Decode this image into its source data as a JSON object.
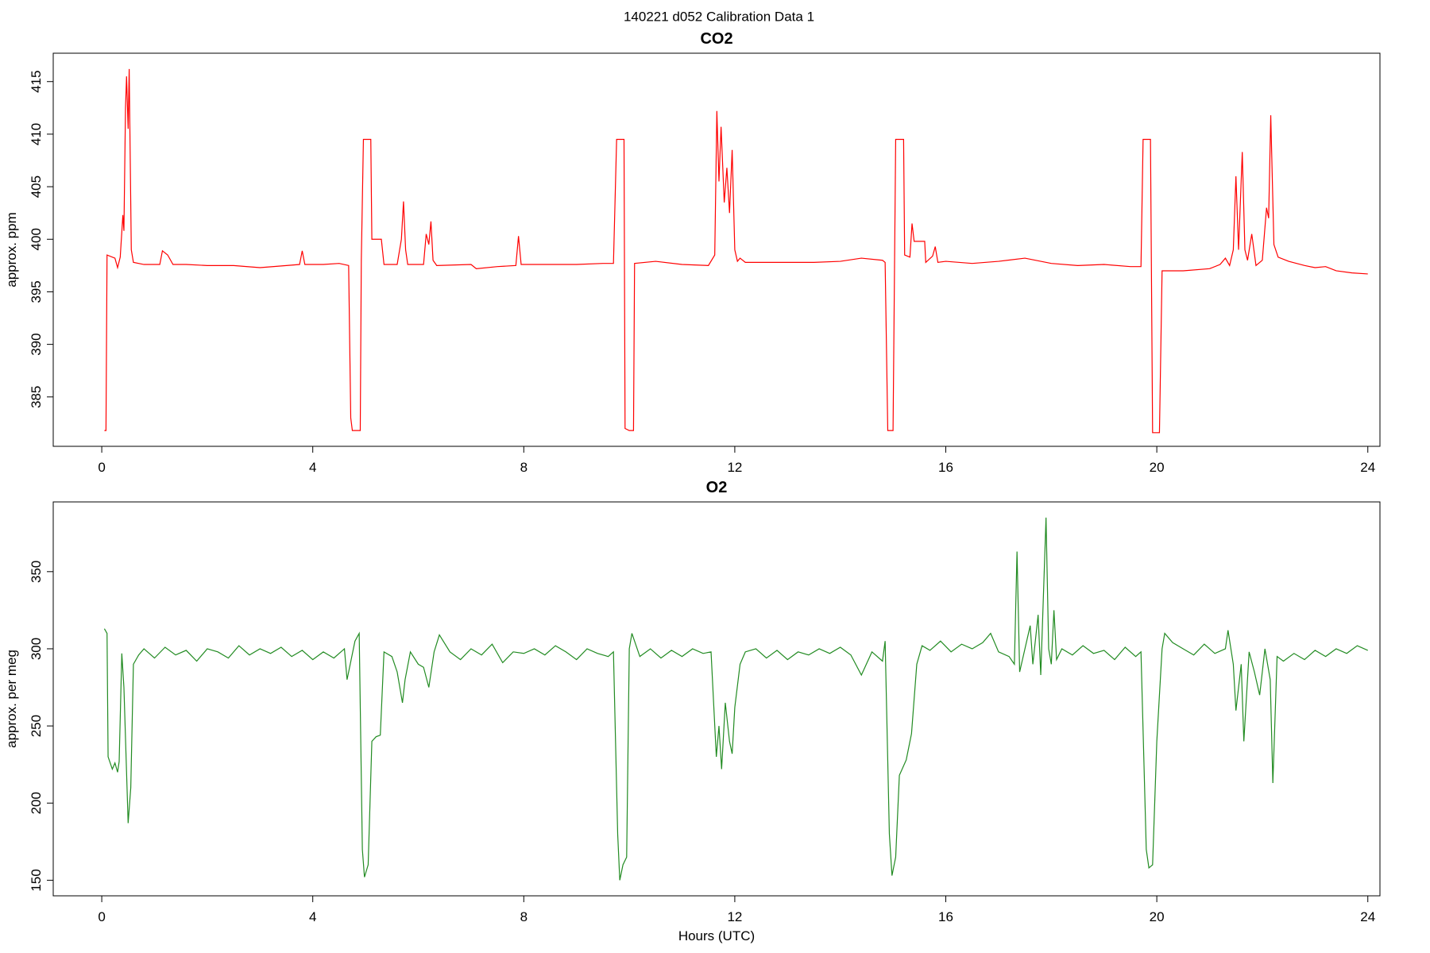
{
  "title": "140221   d052   Calibration Data 1",
  "chart_data": [
    {
      "type": "line",
      "title": "CO2",
      "y_label": "approx. ppm",
      "color": "#ff0000",
      "xlim": [
        -0.92,
        24.23
      ],
      "ylim": [
        380.3,
        417.7
      ],
      "xticks": [
        0,
        4,
        8,
        12,
        16,
        20,
        24
      ],
      "yticks": [
        385,
        390,
        395,
        400,
        405,
        410,
        415
      ],
      "x": [
        0.05,
        0.08,
        0.1,
        0.25,
        0.3,
        0.35,
        0.4,
        0.42,
        0.45,
        0.47,
        0.5,
        0.52,
        0.56,
        0.6,
        0.8,
        1.1,
        1.15,
        1.25,
        1.35,
        1.6,
        2.0,
        2.5,
        3.0,
        3.5,
        3.75,
        3.8,
        3.85,
        4.2,
        4.5,
        4.68,
        4.72,
        4.75,
        4.9,
        4.92,
        4.96,
        5.1,
        5.12,
        5.3,
        5.35,
        5.6,
        5.68,
        5.72,
        5.76,
        5.8,
        6.1,
        6.15,
        6.2,
        6.24,
        6.28,
        6.35,
        7.0,
        7.1,
        7.5,
        7.85,
        7.9,
        7.95,
        8.5,
        9.0,
        9.5,
        9.7,
        9.76,
        9.9,
        9.92,
        10.0,
        10.08,
        10.1,
        10.5,
        11.0,
        11.5,
        11.62,
        11.66,
        11.7,
        11.74,
        11.8,
        11.85,
        11.9,
        11.95,
        12.0,
        12.05,
        12.1,
        12.2,
        13.0,
        13.5,
        14.0,
        14.4,
        14.8,
        14.85,
        14.9,
        15.0,
        15.05,
        15.2,
        15.22,
        15.32,
        15.36,
        15.4,
        15.6,
        15.62,
        15.75,
        15.8,
        15.85,
        16.0,
        16.5,
        17.0,
        17.5,
        18.0,
        18.5,
        19.0,
        19.5,
        19.7,
        19.74,
        19.88,
        19.92,
        20.05,
        20.1,
        20.5,
        21.0,
        21.2,
        21.3,
        21.38,
        21.45,
        21.5,
        21.55,
        21.62,
        21.67,
        21.72,
        21.8,
        21.88,
        22.0,
        22.08,
        22.12,
        22.16,
        22.22,
        22.3,
        22.5,
        22.8,
        23.0,
        23.2,
        23.4,
        23.7,
        24.0
      ],
      "values": [
        381.8,
        381.8,
        398.5,
        398.2,
        397.3,
        398.3,
        402.3,
        400.8,
        412.5,
        415.5,
        410.5,
        416.2,
        399,
        397.8,
        397.6,
        397.6,
        398.9,
        398.5,
        397.6,
        397.6,
        397.5,
        397.5,
        397.3,
        397.5,
        397.6,
        398.9,
        397.6,
        397.6,
        397.7,
        397.5,
        383,
        381.8,
        381.8,
        398,
        409.5,
        409.5,
        400,
        400,
        397.6,
        397.6,
        400,
        403.6,
        399,
        397.6,
        397.6,
        400.5,
        399.5,
        401.7,
        398,
        397.5,
        397.6,
        397.2,
        397.4,
        397.5,
        400.3,
        397.6,
        397.6,
        397.6,
        397.7,
        397.7,
        409.5,
        409.5,
        382,
        381.8,
        381.8,
        397.7,
        397.9,
        397.6,
        397.5,
        398.5,
        412.2,
        405.5,
        410.7,
        403.5,
        406.8,
        402.5,
        408.5,
        399,
        397.9,
        398.2,
        397.8,
        397.8,
        397.8,
        397.9,
        398.2,
        398,
        397.8,
        381.8,
        381.8,
        409.5,
        409.5,
        398.5,
        398.3,
        401.5,
        399.8,
        399.8,
        397.8,
        398.4,
        399.3,
        397.8,
        397.9,
        397.7,
        397.9,
        398.2,
        397.7,
        397.5,
        397.6,
        397.4,
        397.4,
        409.5,
        409.5,
        381.6,
        381.6,
        397,
        397,
        397.2,
        397.6,
        398.2,
        397.5,
        399,
        406,
        399,
        408.3,
        399,
        398,
        400.5,
        397.5,
        398,
        403,
        402,
        411.8,
        399.5,
        398.3,
        397.9,
        397.5,
        397.3,
        397.4,
        397,
        396.8,
        396.7
      ]
    },
    {
      "type": "line",
      "title": "O2",
      "y_label": "approx. per meg",
      "x_label": "Hours (UTC)",
      "color": "#228b22",
      "xlim": [
        -0.92,
        24.23
      ],
      "ylim": [
        139.9,
        395.2
      ],
      "xticks": [
        0,
        4,
        8,
        12,
        16,
        20,
        24
      ],
      "yticks": [
        150,
        200,
        250,
        300,
        350
      ],
      "x": [
        0.05,
        0.1,
        0.12,
        0.2,
        0.25,
        0.3,
        0.33,
        0.38,
        0.42,
        0.5,
        0.55,
        0.6,
        0.7,
        0.8,
        1.0,
        1.2,
        1.4,
        1.6,
        1.8,
        2.0,
        2.2,
        2.4,
        2.6,
        2.8,
        3.0,
        3.2,
        3.4,
        3.6,
        3.8,
        4.0,
        4.2,
        4.4,
        4.6,
        4.65,
        4.8,
        4.88,
        4.94,
        4.98,
        5.05,
        5.12,
        5.2,
        5.28,
        5.35,
        5.5,
        5.6,
        5.7,
        5.75,
        5.85,
        6.0,
        6.1,
        6.2,
        6.3,
        6.4,
        6.6,
        6.8,
        7.0,
        7.2,
        7.4,
        7.6,
        7.8,
        8.0,
        8.2,
        8.4,
        8.6,
        8.8,
        9.0,
        9.2,
        9.4,
        9.6,
        9.7,
        9.78,
        9.82,
        9.88,
        9.95,
        10.0,
        10.05,
        10.2,
        10.4,
        10.6,
        10.8,
        11.0,
        11.2,
        11.4,
        11.55,
        11.65,
        11.7,
        11.75,
        11.82,
        11.9,
        11.95,
        12.0,
        12.1,
        12.2,
        12.4,
        12.6,
        12.8,
        13.0,
        13.2,
        13.4,
        13.6,
        13.8,
        14.0,
        14.2,
        14.4,
        14.6,
        14.8,
        14.85,
        14.93,
        14.98,
        15.05,
        15.12,
        15.25,
        15.35,
        15.45,
        15.55,
        15.7,
        15.9,
        16.1,
        16.3,
        16.5,
        16.7,
        16.85,
        17.0,
        17.2,
        17.3,
        17.35,
        17.4,
        17.5,
        17.6,
        17.65,
        17.75,
        17.8,
        17.9,
        17.95,
        18.0,
        18.05,
        18.1,
        18.2,
        18.4,
        18.6,
        18.8,
        19.0,
        19.2,
        19.4,
        19.6,
        19.7,
        19.8,
        19.85,
        19.92,
        20.0,
        20.1,
        20.15,
        20.3,
        20.5,
        20.7,
        20.9,
        21.1,
        21.3,
        21.35,
        21.45,
        21.5,
        21.6,
        21.65,
        21.75,
        21.85,
        21.95,
        22.05,
        22.15,
        22.2,
        22.28,
        22.4,
        22.6,
        22.8,
        23.0,
        23.2,
        23.4,
        23.6,
        23.8,
        24.0
      ],
      "values": [
        313,
        310,
        230,
        222,
        226,
        220,
        227,
        297,
        275,
        187,
        210,
        290,
        296,
        300,
        294,
        301,
        296,
        299,
        292,
        300,
        298,
        294,
        302,
        296,
        300,
        297,
        301,
        295,
        299,
        293,
        298,
        294,
        300,
        280,
        305,
        310,
        170,
        152,
        160,
        240,
        243,
        244,
        298,
        295,
        285,
        265,
        280,
        298,
        290,
        288,
        275,
        298,
        309,
        298,
        293,
        300,
        296,
        303,
        291,
        298,
        297,
        300,
        296,
        302,
        298,
        293,
        300,
        297,
        295,
        298,
        180,
        150,
        160,
        165,
        300,
        310,
        295,
        300,
        294,
        299,
        295,
        300,
        297,
        298,
        230,
        250,
        222,
        265,
        240,
        232,
        262,
        290,
        298,
        300,
        294,
        299,
        293,
        298,
        296,
        300,
        297,
        301,
        296,
        283,
        298,
        292,
        305,
        180,
        153,
        165,
        218,
        228,
        245,
        290,
        302,
        299,
        305,
        298,
        303,
        300,
        304,
        310,
        298,
        295,
        290,
        363,
        285,
        300,
        315,
        290,
        322,
        283,
        385,
        300,
        290,
        325,
        293,
        300,
        296,
        302,
        297,
        299,
        293,
        301,
        295,
        298,
        170,
        158,
        160,
        240,
        300,
        310,
        304,
        300,
        296,
        303,
        297,
        300,
        312,
        290,
        260,
        290,
        240,
        298,
        285,
        270,
        300,
        280,
        213,
        295,
        292,
        297,
        293,
        299,
        295,
        300,
        297,
        302,
        299
      ]
    }
  ]
}
